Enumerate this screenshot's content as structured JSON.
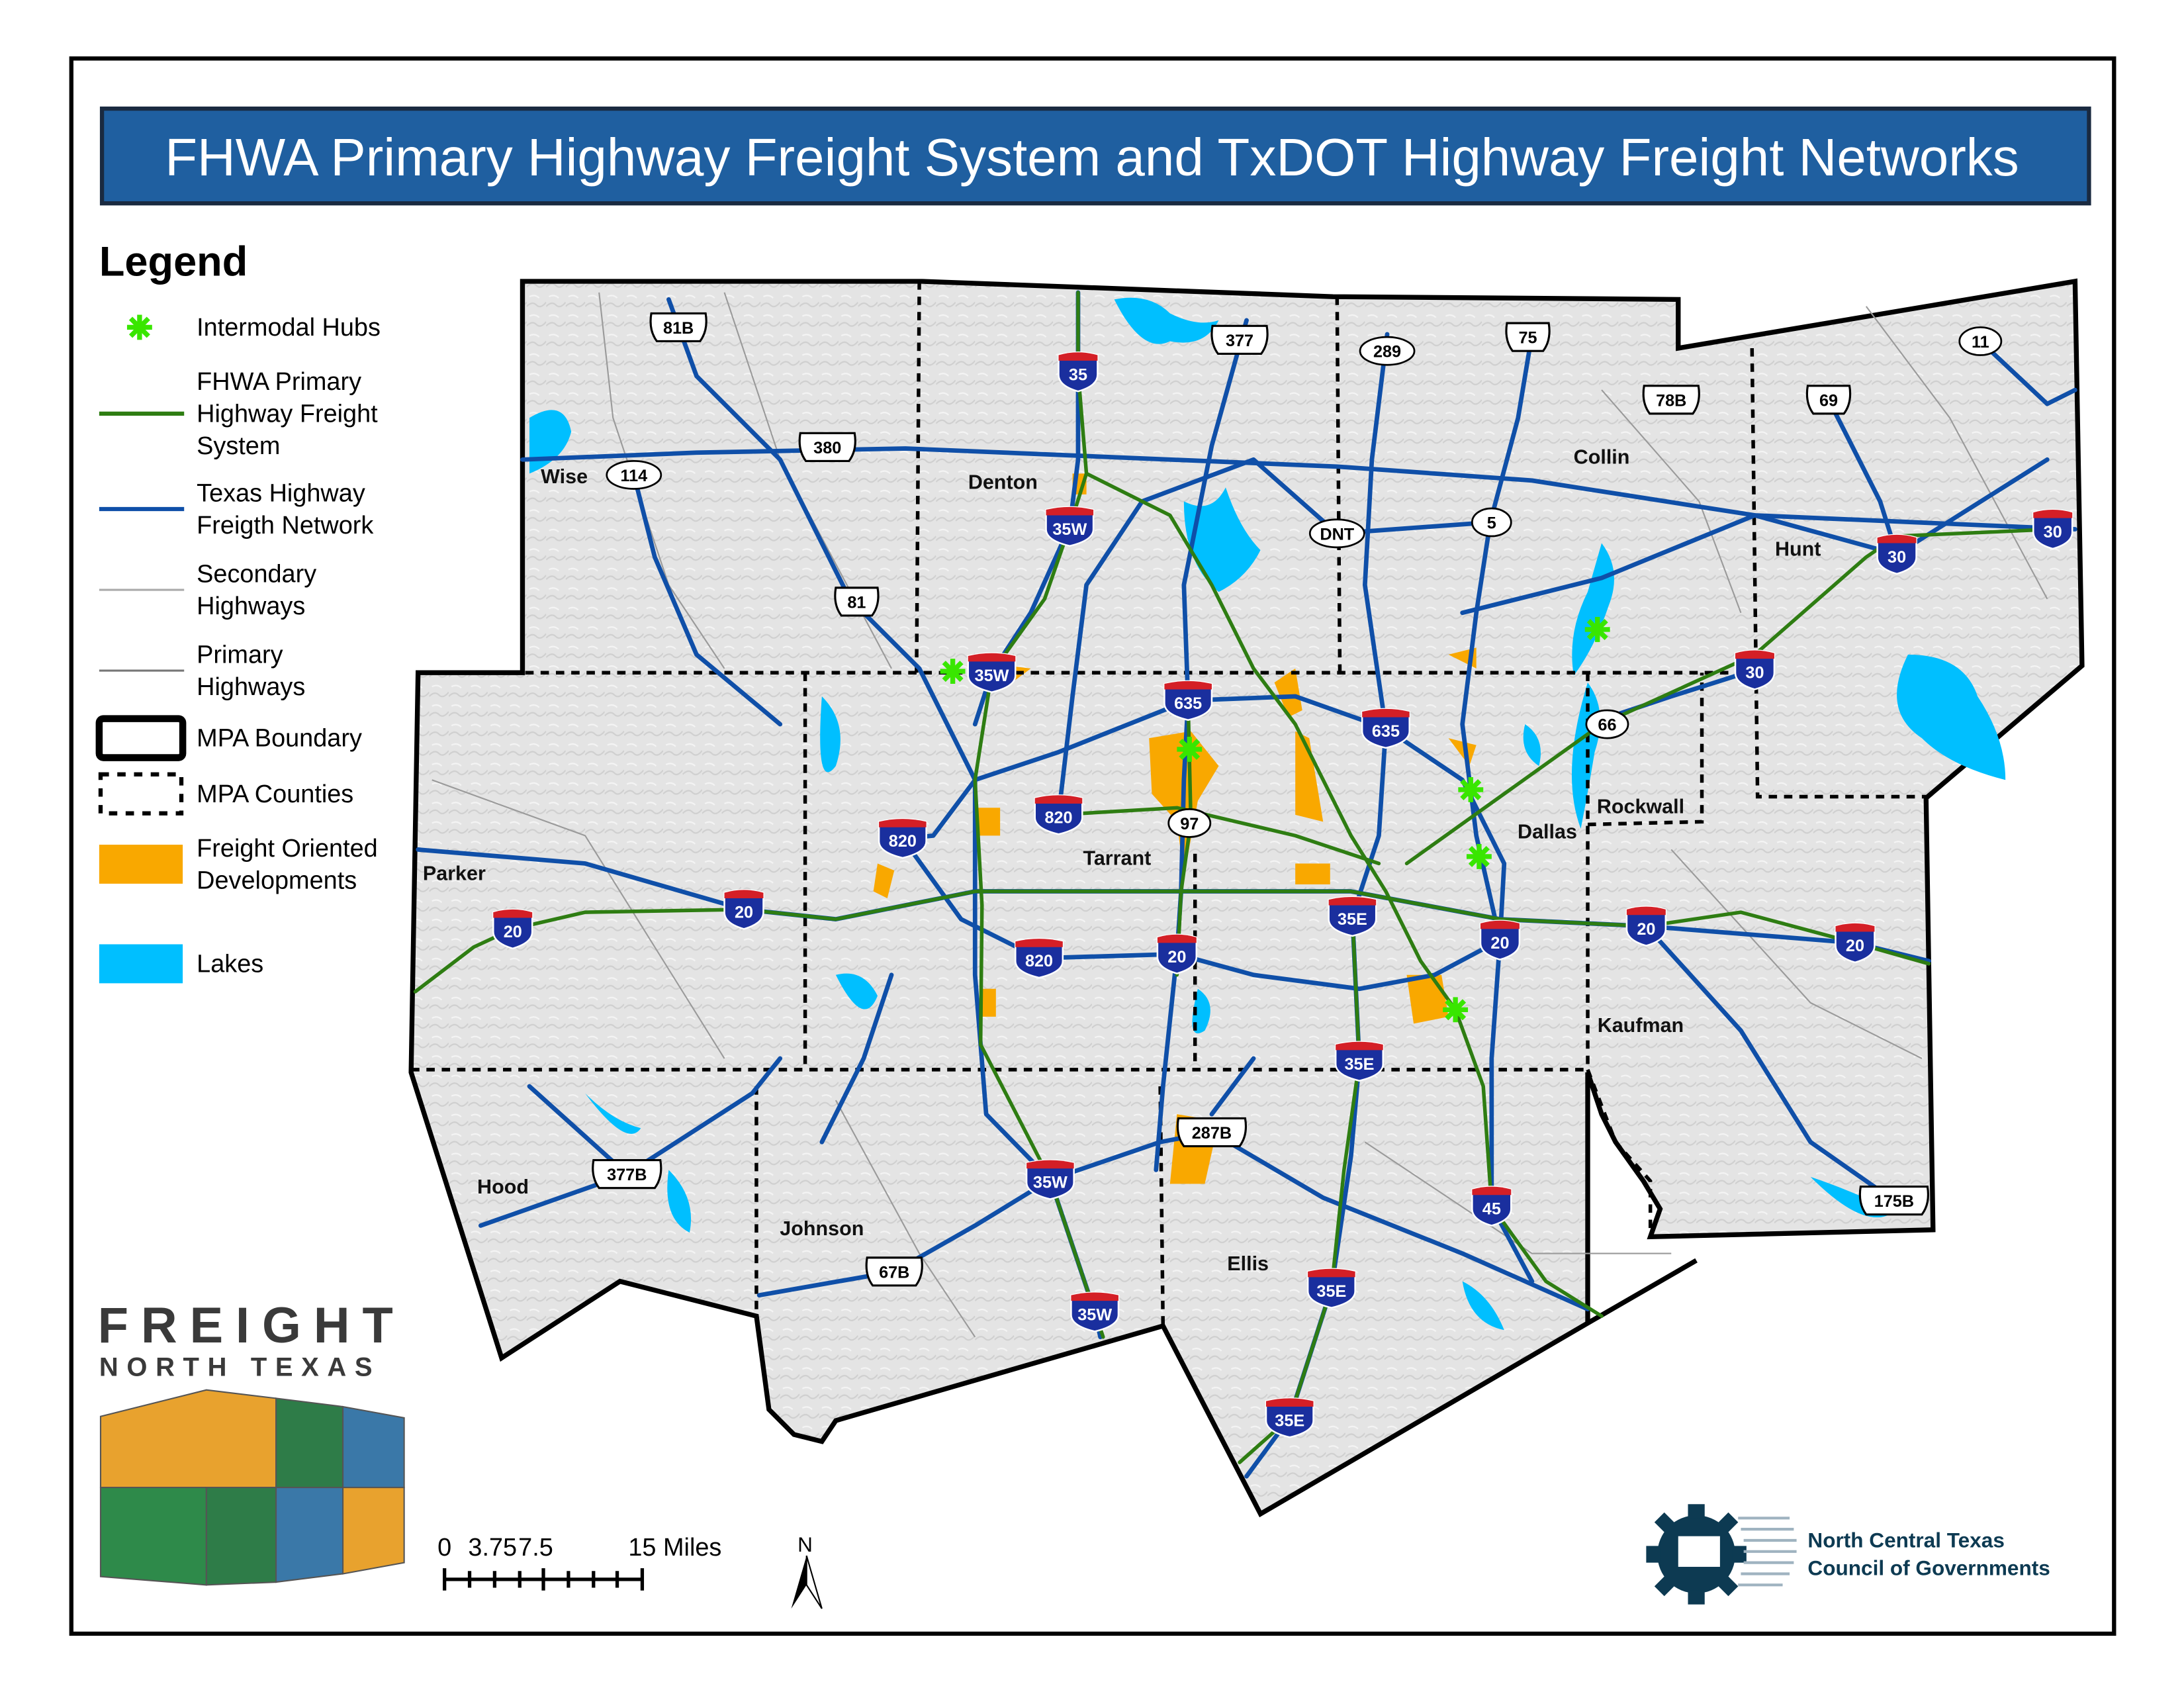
{
  "title": "FHWA Primary Highway Freight System and TxDOT Highway Freight Networks",
  "legend": {
    "heading": "Legend",
    "items": [
      {
        "label": [
          "Intermodal Hubs"
        ],
        "symbol": "green-asterisk-icon",
        "color": "#39e600"
      },
      {
        "label": [
          "FHWA Primary",
          "Highway Freight",
          "System"
        ],
        "symbol": "line",
        "color": "#2e7d12"
      },
      {
        "label": [
          "Texas Highway",
          "Freigth Network"
        ],
        "symbol": "line",
        "color": "#0f4fa8"
      },
      {
        "label": [
          "Secondary",
          "Highways"
        ],
        "symbol": "line",
        "color": "#aaaaaa"
      },
      {
        "label": [
          "Primary",
          "Highways"
        ],
        "symbol": "line",
        "color": "#777777"
      },
      {
        "label": [
          "MPA Boundary"
        ],
        "symbol": "thick-box",
        "color": "#000000"
      },
      {
        "label": [
          "MPA Counties"
        ],
        "symbol": "dashed-box",
        "color": "#000000"
      },
      {
        "label": [
          "Freight Oriented",
          "Developments"
        ],
        "symbol": "fill",
        "color": "#f9a800"
      },
      {
        "label": [
          "Lakes"
        ],
        "symbol": "fill",
        "color": "#00bfff"
      }
    ]
  },
  "counties": [
    "Wise",
    "Denton",
    "Collin",
    "Hunt",
    "Parker",
    "Tarrant",
    "Dallas",
    "Rockwall",
    "Kaufman",
    "Hood",
    "Johnson",
    "Ellis"
  ],
  "interstate_shields": [
    "35",
    "35W",
    "35W",
    "635",
    "635",
    "820",
    "820",
    "820",
    "20",
    "20",
    "20",
    "20",
    "20",
    "20",
    "35E",
    "35E",
    "35E",
    "35E",
    "35W",
    "35W",
    "45",
    "30",
    "30",
    "30"
  ],
  "route_shields": [
    "81B",
    "377",
    "289",
    "75",
    "78B",
    "11",
    "69",
    "380",
    "114",
    "DNT",
    "5",
    "81",
    "66",
    "97",
    "287B",
    "377B",
    "67B",
    "175B"
  ],
  "intermodal_hub_count": 6,
  "scale_bar": {
    "labels": [
      "0",
      "3.75",
      "7.5",
      "15 Miles"
    ]
  },
  "north_arrow": "N",
  "freight_logo": {
    "line1": "FREIGHT",
    "line2": "NORTH TEXAS"
  },
  "nctcog_logo": {
    "line1": "North Central Texas",
    "line2": "Council of Governments"
  },
  "colors": {
    "title_bg": "#1f5fa0",
    "interstate_blue": "#1a2f9e",
    "interstate_red": "#d41f26"
  }
}
